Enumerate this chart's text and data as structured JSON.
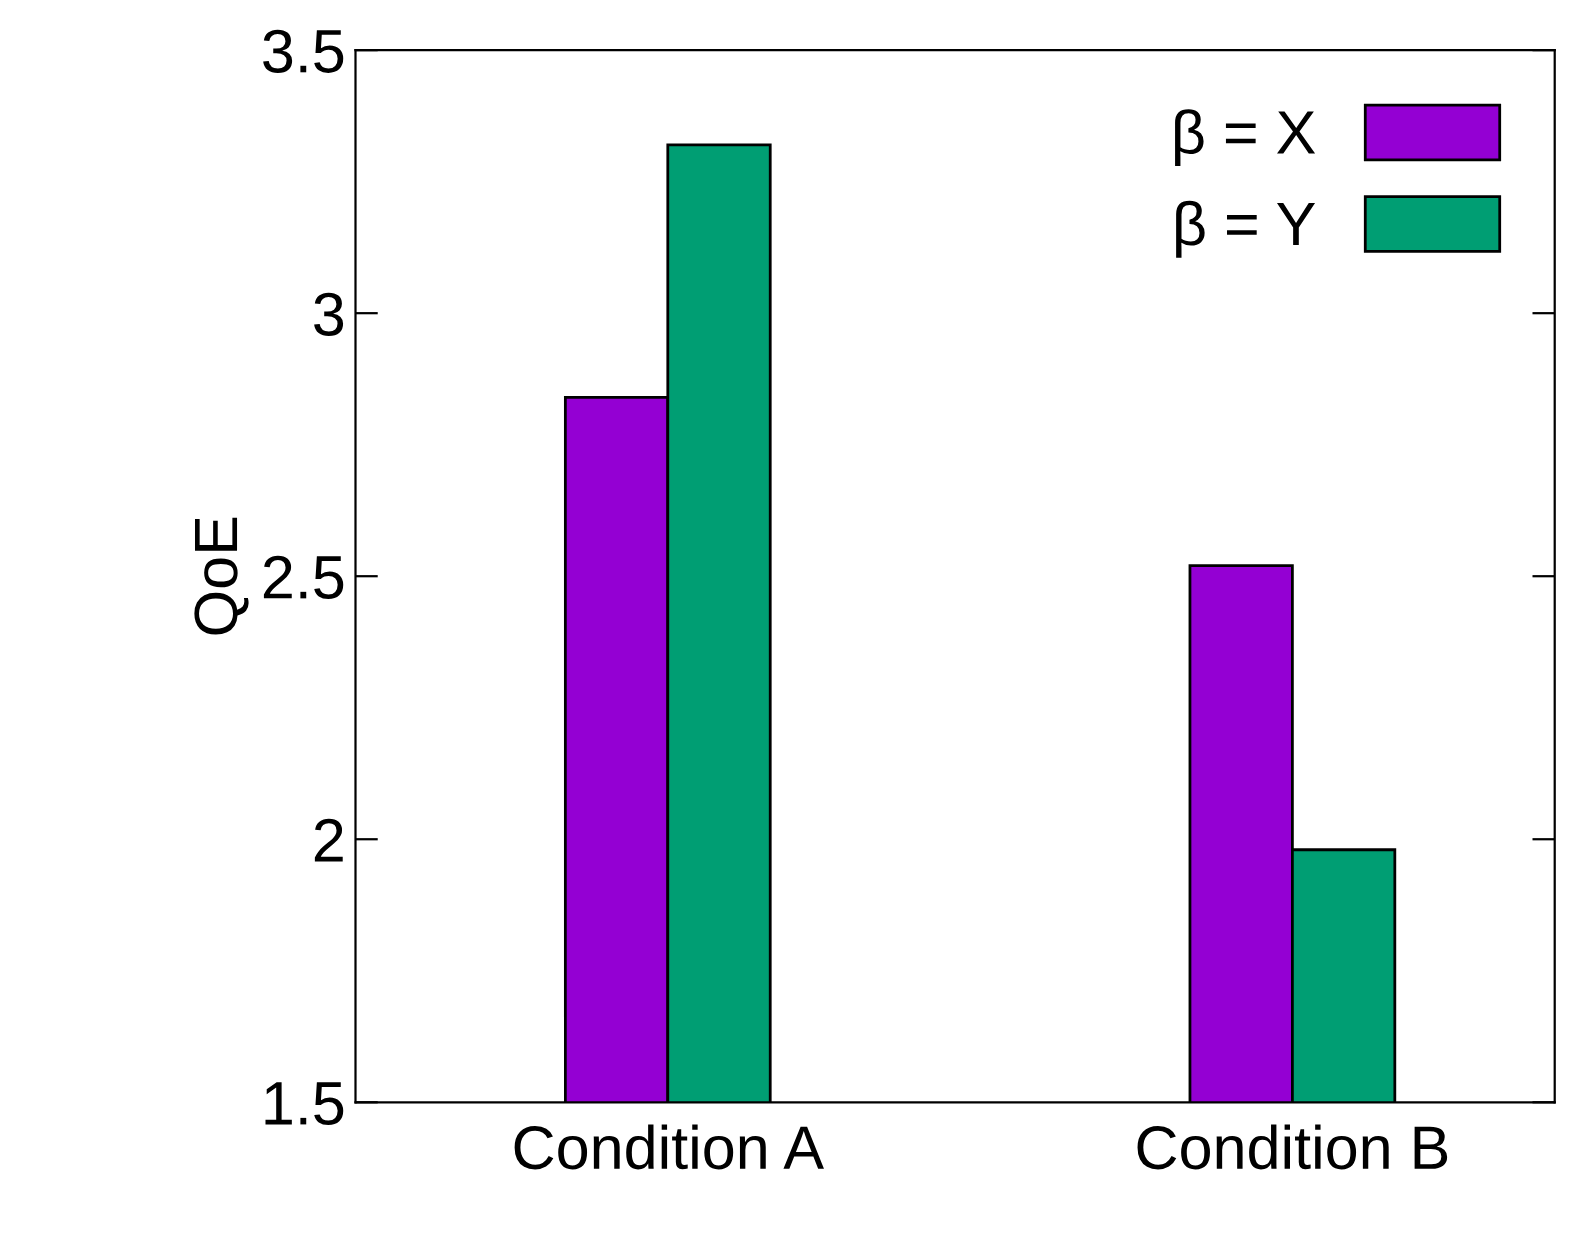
{
  "chart_data": {
    "type": "bar",
    "ylabel": "QoE",
    "categories": [
      "Condition A",
      "Condition B"
    ],
    "series": [
      {
        "name": "β = X",
        "color": "#9400d3",
        "values": [
          2.84,
          2.52
        ]
      },
      {
        "name": "β = Y",
        "color": "#009e73",
        "values": [
          3.32,
          1.98
        ]
      }
    ],
    "ylim": [
      1.5,
      3.5
    ],
    "yticks": [
      1.5,
      2,
      2.5,
      3,
      3.5
    ],
    "grid": false,
    "legend": "top right"
  }
}
